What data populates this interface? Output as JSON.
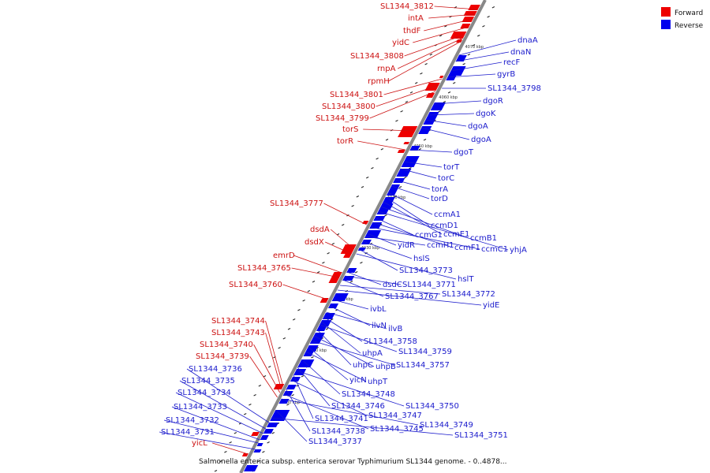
{
  "caption": "Salmonella enterica subsp. enterica serovar Typhimurium SL1344 genome. - 0..4878...",
  "legend": {
    "forward_label": "Forward",
    "reverse_label": "Reverse",
    "forward_color": "#ee0000",
    "reverse_color": "#0000ee"
  },
  "ticks": [
    "4000 kbp",
    "4010 kbp",
    "4020 kbp",
    "4030 kbp",
    "4040 kbp",
    "4050 kbp",
    "4060 kbp",
    "4070 kbp"
  ],
  "forward_genes": [
    "SL1344_3812",
    "intA",
    "thdF",
    "yidC",
    "SL1344_3808",
    "rnpA",
    "rpmH",
    "SL1344_3801",
    "SL1344_3800",
    "SL1344_3799",
    "torS",
    "torR",
    "SL1344_3777",
    "dsdA",
    "dsdX",
    "emrD",
    "SL1344_3765",
    "SL1344_3760",
    "SL1344_3744",
    "SL1344_3743",
    "SL1344_3740",
    "SL1344_3739",
    "yicL"
  ],
  "reverse_genes": [
    "dnaA",
    "dnaN",
    "recF",
    "gyrB",
    "SL1344_3798",
    "dgoR",
    "dgoK",
    "dgoA",
    "dgoA",
    "dgoT",
    "torT",
    "torC",
    "torA",
    "torD",
    "ccmA1",
    "ccmD1",
    "ccmE1",
    "ccmB1",
    "yhjA",
    "ccmG1",
    "ccmF1",
    "ccmC1",
    "yidR",
    "ccmH1",
    "hslS",
    "SL1344_3773",
    "hslT",
    "dsdC",
    "SL1344_3771",
    "SL1344_3767",
    "SL1344_3772",
    "yidE",
    "ivbL",
    "ilvN",
    "ilvB",
    "SL1344_3758",
    "uhpA",
    "SL1344_3759",
    "uhpC",
    "uhpB",
    "SL1344_3757",
    "yicN",
    "uhpT",
    "SL1344_3748",
    "SL1344_3746",
    "SL1344_3750",
    "SL1344_3741",
    "SL1344_3747",
    "SL1344_3738",
    "SL1344_3745",
    "SL1344_3749",
    "SL1344_3737",
    "SL1344_3751",
    "SL1344_3736",
    "SL1344_3735",
    "SL1344_3734",
    "SL1344_3733",
    "SL1344_3732",
    "SL1344_3731"
  ]
}
